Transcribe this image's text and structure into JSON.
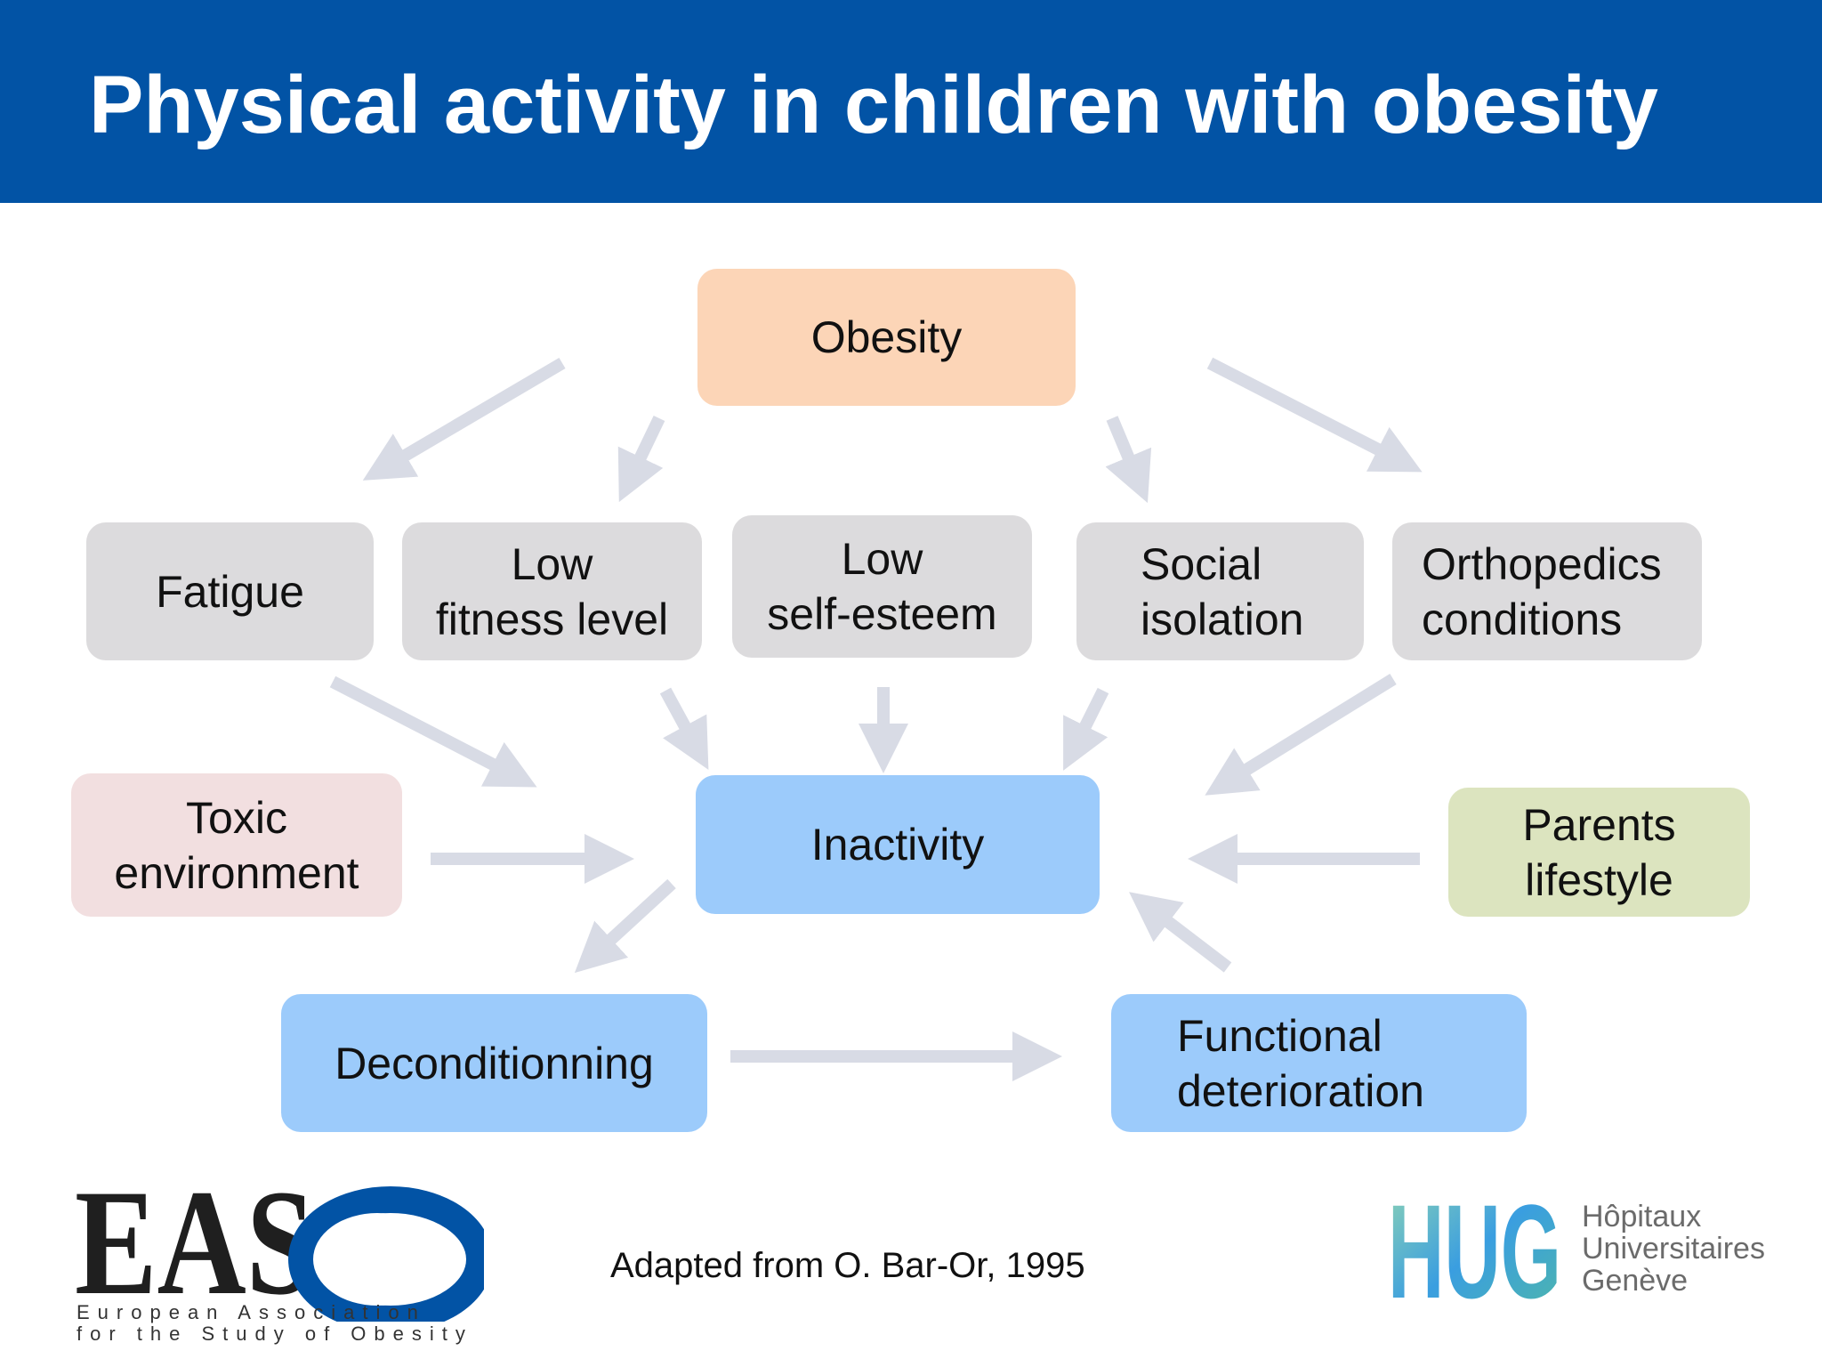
{
  "title": "Physical activity in children with obesity",
  "nodes": {
    "obesity": "Obesity",
    "fatigue": "Fatigue",
    "low_fitness": "Low\nfitness level",
    "low_self_esteem": "Low\nself-esteem",
    "social_isolation": "Social\nisolation",
    "orthopedics": "Orthopedics\nconditions",
    "toxic_env": "Toxic\nenvironment",
    "inactivity": "Inactivity",
    "parents": "Parents\nlifestyle",
    "deconditioning": "Deconditionning",
    "functional": "Functional\ndeterioration"
  },
  "citation": "Adapted from O. Bar-Or, 1995",
  "logos": {
    "easo": {
      "text": "EAS",
      "subtitle_line1": "European Association",
      "subtitle_line2": "for the Study of Obesity"
    },
    "hug": {
      "text": "HUG",
      "line1": "Hôpitaux",
      "line2": "Universitaires",
      "line3": "Genève"
    }
  },
  "colors": {
    "header": "#0253a5",
    "obesity": "#fcd5b7",
    "grey": "#dcdbdd",
    "blue": "#9ccbfb",
    "pink": "#f2dfe0",
    "green": "#dce4bf",
    "arrow": "#d8dbe5"
  }
}
